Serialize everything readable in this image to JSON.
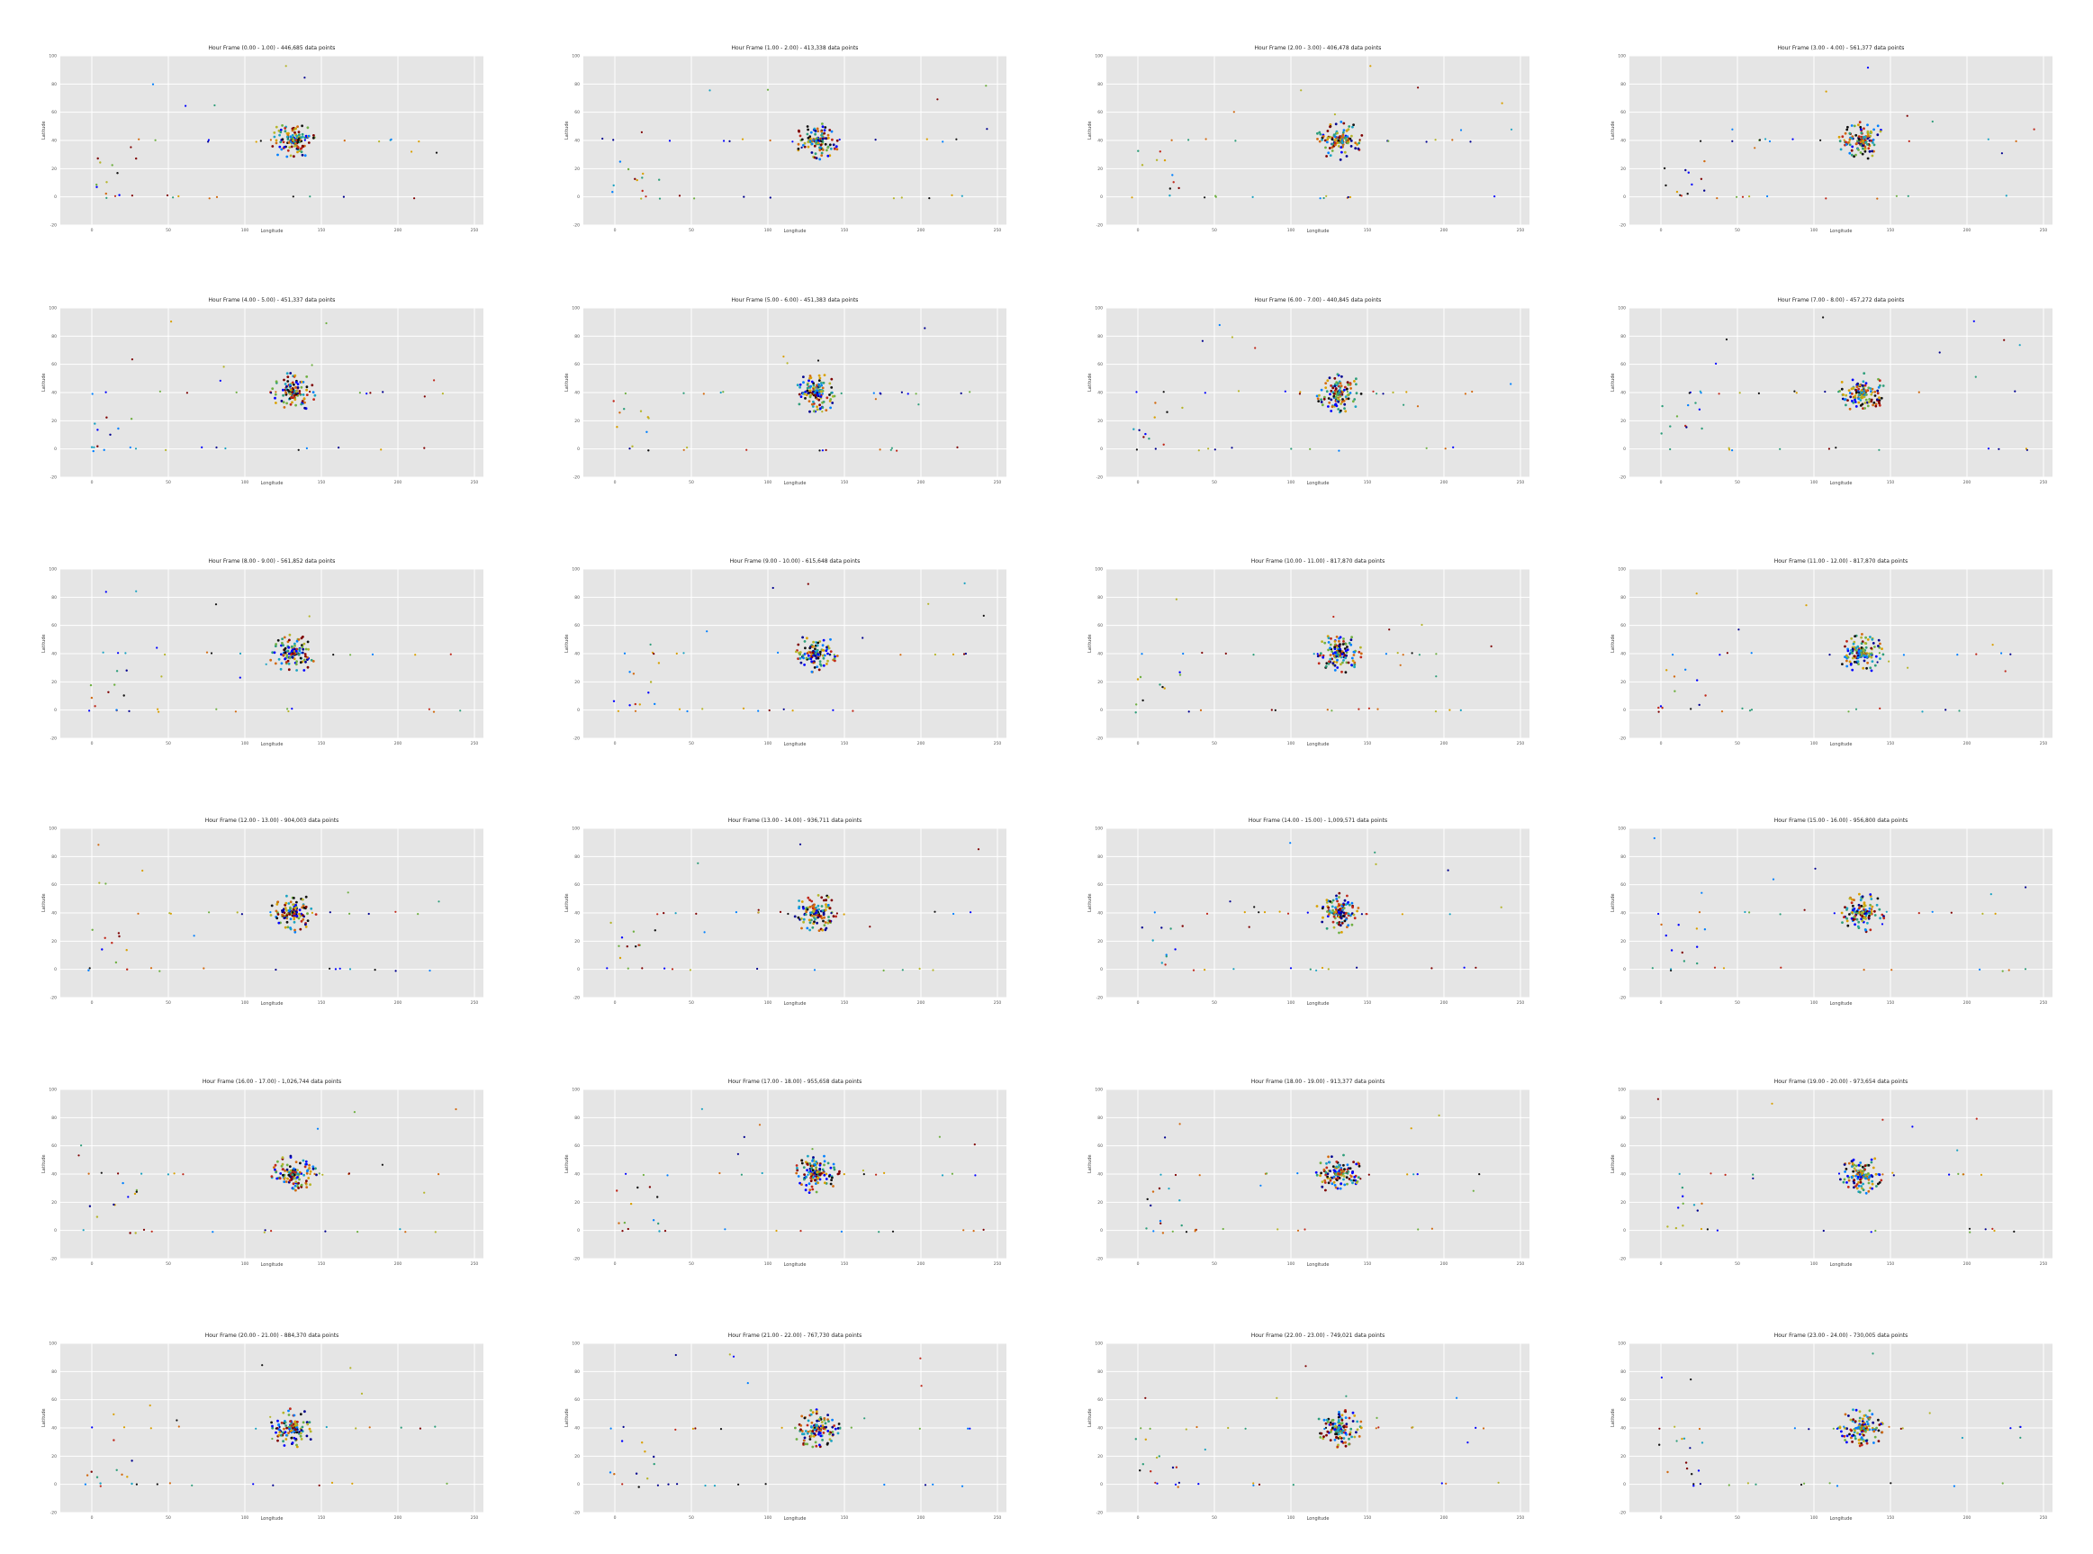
{
  "colors": {
    "figure_bg": "#ffffff",
    "axes_bg": "#e5e5e5",
    "grid": "#ffffff",
    "palette": [
      "#00008f",
      "#0000ff",
      "#0080ff",
      "#1ba3c2",
      "#2e9e7a",
      "#6fb042",
      "#b5b52a",
      "#d9a000",
      "#d26a10",
      "#c0281a",
      "#7f0000",
      "#111111"
    ]
  },
  "chart_data": {
    "type": "scatter",
    "xlabel": "Longitude",
    "ylabel": "Latitude",
    "xlim": [
      -10,
      160
    ],
    "ylim": [
      -10,
      100
    ],
    "x_ticks": [
      "0",
      "50",
      "100",
      "150",
      "200",
      "250"
    ],
    "y_ticks": [
      "100",
      "80",
      "60",
      "40",
      "20",
      "0",
      "-20"
    ],
    "grid": true,
    "legend": "none",
    "panels": [
      {
        "title": "Hour Frame (0.00 - 1.00) - 446,685 data points"
      },
      {
        "title": "Hour Frame (1.00 - 2.00) - 413,338 data points"
      },
      {
        "title": "Hour Frame (2.00 - 3.00) - 406,478 data points"
      },
      {
        "title": "Hour Frame (3.00 - 4.00) - 561,377 data points"
      },
      {
        "title": "Hour Frame (4.00 - 5.00) - 451,337 data points"
      },
      {
        "title": "Hour Frame (5.00 - 6.00) - 451,383 data points"
      },
      {
        "title": "Hour Frame (6.00 - 7.00) - 440,845 data points"
      },
      {
        "title": "Hour Frame (7.00 - 8.00) - 457,272 data points"
      },
      {
        "title": "Hour Frame (8.00 - 9.00) - 561,852 data points"
      },
      {
        "title": "Hour Frame (9.00 - 10.00) - 615,648 data points"
      },
      {
        "title": "Hour Frame (10.00 - 11.00) - 817,870 data points"
      },
      {
        "title": "Hour Frame (11.00 - 12.00) - 817,870 data points"
      },
      {
        "title": "Hour Frame (12.00 - 13.00) - 904,003 data points"
      },
      {
        "title": "Hour Frame (13.00 - 14.00) - 936,711 data points"
      },
      {
        "title": "Hour Frame (14.00 - 15.00) - 1,009,571 data points"
      },
      {
        "title": "Hour Frame (15.00 - 16.00) - 956,800 data points"
      },
      {
        "title": "Hour Frame (16.00 - 17.00) - 1,026,744 data points"
      },
      {
        "title": "Hour Frame (17.00 - 18.00) - 955,658 data points"
      },
      {
        "title": "Hour Frame (18.00 - 19.00) - 913,377 data points"
      },
      {
        "title": "Hour Frame (19.00 - 20.00) - 973,654 data points"
      },
      {
        "title": "Hour Frame (20.00 - 21.00) - 884,370 data points"
      },
      {
        "title": "Hour Frame (21.00 - 22.00) - 767,730 data points"
      },
      {
        "title": "Hour Frame (22.00 - 23.00) - 749,021 data points"
      },
      {
        "title": "Hour Frame (23.00 - 24.00) - 730,005 data points"
      }
    ]
  }
}
